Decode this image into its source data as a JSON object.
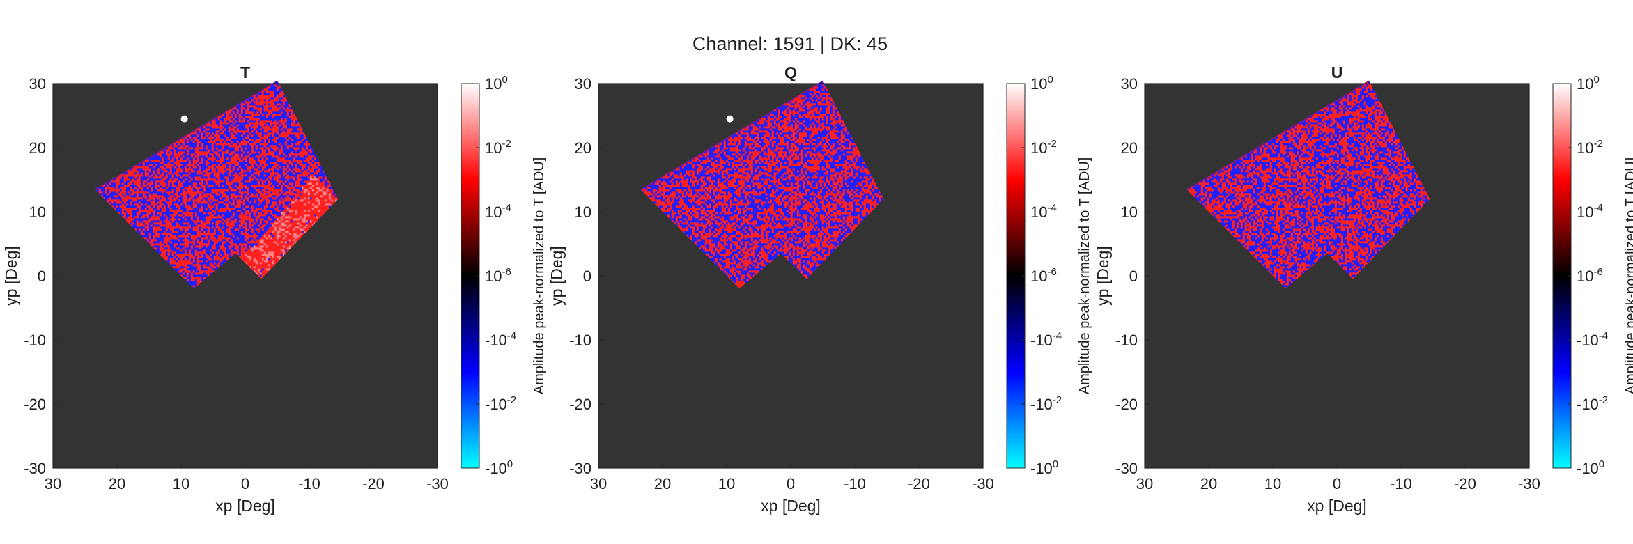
{
  "figure": {
    "suptitle": "Channel: 1591 | DK: 45"
  },
  "colors": {
    "axes_background": "#333333",
    "positive_high": "#ffffff",
    "positive_mid": "#ff0000",
    "zero": "#000000",
    "negative_mid": "#0000ff",
    "negative_high": "#00ffff"
  },
  "chart_data": [
    {
      "type": "heatmap",
      "title": "T",
      "xlabel": "xp [Deg]",
      "ylabel": "yp [Deg]",
      "xlim": [
        30,
        -30
      ],
      "ylim": [
        -30,
        30
      ],
      "x_reversed": true,
      "xticks": [
        "30",
        "20",
        "10",
        "0",
        "-10",
        "-20",
        "-30"
      ],
      "yticks": [
        "30",
        "20",
        "10",
        "0",
        "-10",
        "-20",
        "-30"
      ],
      "colorbar": {
        "label": "Amplitude peak-normalized to T [ADU]",
        "scale": "symmetric-log",
        "ticks": [
          {
            "base": "10",
            "exp": "0"
          },
          {
            "base": "10",
            "exp": "-2"
          },
          {
            "base": "10",
            "exp": "-4"
          },
          {
            "base": "10",
            "exp": "-6"
          },
          {
            "base": "-10",
            "exp": "-4"
          },
          {
            "base": "-10",
            "exp": "-2"
          },
          {
            "base": "-10",
            "exp": "0"
          }
        ]
      },
      "coverage_outline": [
        [
          -5,
          30.5
        ],
        [
          -14.5,
          12
        ],
        [
          -2.5,
          -0.5
        ],
        [
          1.5,
          3.5
        ],
        [
          8,
          -2
        ],
        [
          23.5,
          13.5
        ]
      ],
      "bright_spot": [
        9.5,
        24.5
      ],
      "high_region": [
        [
          -10.5,
          16
        ],
        [
          -14.5,
          12
        ],
        [
          -2.5,
          -0.5
        ],
        [
          1.5,
          3.5
        ],
        [
          3.5,
          2
        ],
        [
          -1,
          4.5
        ]
      ],
      "high_region_red_fraction": 0.97
    },
    {
      "type": "heatmap",
      "title": "Q",
      "xlabel": "xp [Deg]",
      "ylabel": "yp [Deg]",
      "xlim": [
        30,
        -30
      ],
      "ylim": [
        -30,
        30
      ],
      "x_reversed": true,
      "xticks": [
        "30",
        "20",
        "10",
        "0",
        "-10",
        "-20",
        "-30"
      ],
      "yticks": [
        "30",
        "20",
        "10",
        "0",
        "-10",
        "-20",
        "-30"
      ],
      "colorbar": {
        "label": "Amplitude peak-normalized to T [ADU]",
        "scale": "symmetric-log",
        "ticks": [
          {
            "base": "10",
            "exp": "0"
          },
          {
            "base": "10",
            "exp": "-2"
          },
          {
            "base": "10",
            "exp": "-4"
          },
          {
            "base": "10",
            "exp": "-6"
          },
          {
            "base": "-10",
            "exp": "-4"
          },
          {
            "base": "-10",
            "exp": "-2"
          },
          {
            "base": "-10",
            "exp": "0"
          }
        ]
      },
      "coverage_outline": [
        [
          -5,
          30.5
        ],
        [
          -14.5,
          12
        ],
        [
          -2.5,
          -0.5
        ],
        [
          1.5,
          3.5
        ],
        [
          8,
          -2
        ],
        [
          23.5,
          13.5
        ]
      ],
      "bright_spot": [
        9.5,
        24.5
      ],
      "high_region": null,
      "high_region_red_fraction": null
    },
    {
      "type": "heatmap",
      "title": "U",
      "xlabel": "xp [Deg]",
      "ylabel": "yp [Deg]",
      "xlim": [
        30,
        -30
      ],
      "ylim": [
        -30,
        30
      ],
      "x_reversed": true,
      "xticks": [
        "30",
        "20",
        "10",
        "0",
        "-10",
        "-20",
        "-30"
      ],
      "yticks": [
        "30",
        "20",
        "10",
        "0",
        "-10",
        "-20",
        "-30"
      ],
      "colorbar": {
        "label": "Amplitude peak-normalized to T [ADU]",
        "scale": "symmetric-log",
        "ticks": [
          {
            "base": "10",
            "exp": "0"
          },
          {
            "base": "10",
            "exp": "-2"
          },
          {
            "base": "10",
            "exp": "-4"
          },
          {
            "base": "10",
            "exp": "-6"
          },
          {
            "base": "-10",
            "exp": "-4"
          },
          {
            "base": "-10",
            "exp": "-2"
          },
          {
            "base": "-10",
            "exp": "0"
          }
        ]
      },
      "coverage_outline": [
        [
          -5,
          30.5
        ],
        [
          -14.5,
          12
        ],
        [
          -2.5,
          -0.5
        ],
        [
          1.5,
          3.5
        ],
        [
          8,
          -2
        ],
        [
          23.5,
          13.5
        ]
      ],
      "bright_spot": null,
      "high_region": null,
      "high_region_red_fraction": null
    }
  ]
}
